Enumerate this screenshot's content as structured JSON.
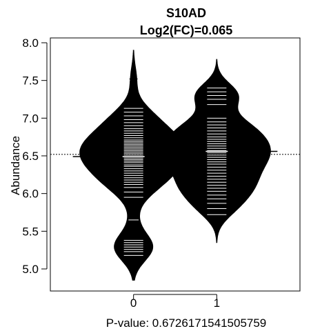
{
  "chart_data": {
    "type": "beanplot",
    "title": "S10AD",
    "subtitle": "Log2(FC)=0.065",
    "xlabel": "P-value: 0.6726171541505759",
    "ylabel": "Abundance",
    "categories": [
      "0",
      "1"
    ],
    "ylim": [
      4.7,
      8.05
    ],
    "yticks": [
      5.0,
      5.5,
      6.0,
      6.5,
      7.0,
      7.5,
      8.0
    ],
    "ytick_labels": [
      "5.0",
      "5.5",
      "6.0",
      "6.5",
      "7.0",
      "7.5",
      "8.0"
    ],
    "overall_mean": 6.52,
    "grid": false,
    "legend": "none",
    "colors": {
      "bean": "#000000",
      "beanline": "#ffffff",
      "meanline": "#000000",
      "background": "#ffffff"
    },
    "groups": [
      {
        "category": "0",
        "mean": 6.49,
        "range": [
          4.85,
          7.9
        ],
        "points": [
          5.18,
          5.23,
          5.26,
          5.29,
          5.32,
          5.35,
          5.38,
          5.65,
          5.95,
          6.02,
          6.08,
          6.12,
          6.15,
          6.18,
          6.21,
          6.24,
          6.27,
          6.3,
          6.33,
          6.36,
          6.38,
          6.41,
          6.43,
          6.45,
          6.47,
          6.49,
          6.51,
          6.53,
          6.55,
          6.57,
          6.59,
          6.61,
          6.63,
          6.65,
          6.67,
          6.69,
          6.71,
          6.74,
          6.77,
          6.8,
          6.83,
          6.86,
          6.9,
          6.94,
          6.98,
          7.03,
          7.08,
          7.13,
          7.52
        ]
      },
      {
        "category": "1",
        "mean": 6.56,
        "range": [
          5.35,
          7.78
        ],
        "points": [
          5.72,
          5.8,
          5.87,
          5.93,
          5.98,
          6.03,
          6.07,
          6.11,
          6.15,
          6.19,
          6.23,
          6.27,
          6.31,
          6.35,
          6.39,
          6.42,
          6.45,
          6.48,
          6.51,
          6.54,
          6.57,
          6.6,
          6.63,
          6.66,
          6.69,
          6.72,
          6.75,
          6.79,
          6.83,
          6.87,
          6.91,
          6.95,
          7.0,
          7.18,
          7.25,
          7.3,
          7.35,
          7.4
        ]
      }
    ]
  }
}
